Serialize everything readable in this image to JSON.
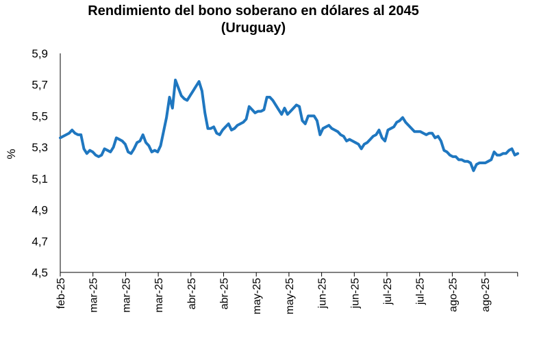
{
  "chart_data": {
    "type": "line",
    "title": "Rendimiento del bono soberano en dólares al 2045",
    "subtitle": "(Uruguay)",
    "ylabel": "%",
    "xlabel": "",
    "ylim": [
      4.5,
      5.9
    ],
    "yticks": [
      "4,5",
      "4,7",
      "4,9",
      "5,1",
      "5,3",
      "5,5",
      "5,7",
      "5,9"
    ],
    "ytick_values": [
      4.5,
      4.7,
      4.9,
      5.1,
      5.3,
      5.5,
      5.7,
      5.9
    ],
    "xticks": [
      "feb-25",
      "mar-25",
      "mar-25",
      "mar-25",
      "abr-25",
      "abr-25",
      "may-25",
      "may-25",
      "jun-25",
      "jun-25",
      "jul-25",
      "jul-25",
      "ago-25",
      "ago-25"
    ],
    "grid": false,
    "legend": "none",
    "line_color": "#1f77c0",
    "series": [
      {
        "values": [
          5.36,
          5.37,
          5.38,
          5.39,
          5.41,
          5.39,
          5.38,
          5.38,
          5.29,
          5.26,
          5.28,
          5.27,
          5.25,
          5.24,
          5.25,
          5.29,
          5.28,
          5.27,
          5.3,
          5.36,
          5.35,
          5.34,
          5.32,
          5.27,
          5.26,
          5.29,
          5.33,
          5.34,
          5.38,
          5.33,
          5.31,
          5.27,
          5.28,
          5.27,
          5.31,
          5.4,
          5.49,
          5.62,
          5.55,
          5.73,
          5.68,
          5.63,
          5.61,
          5.6,
          5.63,
          5.66,
          5.69,
          5.72,
          5.66,
          5.52,
          5.42,
          5.42,
          5.43,
          5.39,
          5.38,
          5.41,
          5.43,
          5.45,
          5.41,
          5.42,
          5.44,
          5.45,
          5.46,
          5.48,
          5.56,
          5.54,
          5.52,
          5.53,
          5.53,
          5.54,
          5.62,
          5.62,
          5.6,
          5.57,
          5.54,
          5.51,
          5.55,
          5.51,
          5.53,
          5.55,
          5.57,
          5.56,
          5.47,
          5.45,
          5.5,
          5.5,
          5.5,
          5.47,
          5.38,
          5.42,
          5.43,
          5.44,
          5.42,
          5.41,
          5.4,
          5.38,
          5.37,
          5.34,
          5.35,
          5.34,
          5.33,
          5.32,
          5.29,
          5.32,
          5.33,
          5.35,
          5.37,
          5.38,
          5.41,
          5.36,
          5.34,
          5.41,
          5.42,
          5.43,
          5.46,
          5.47,
          5.49,
          5.46,
          5.44,
          5.42,
          5.4,
          5.4,
          5.4,
          5.39,
          5.38,
          5.39,
          5.39,
          5.36,
          5.37,
          5.34,
          5.28,
          5.27,
          5.25,
          5.24,
          5.24,
          5.22,
          5.22,
          5.21,
          5.21,
          5.2,
          5.15,
          5.19,
          5.2,
          5.2,
          5.2,
          5.21,
          5.22,
          5.27,
          5.25,
          5.25,
          5.26,
          5.26,
          5.28,
          5.29,
          5.25,
          5.26
        ]
      }
    ]
  }
}
